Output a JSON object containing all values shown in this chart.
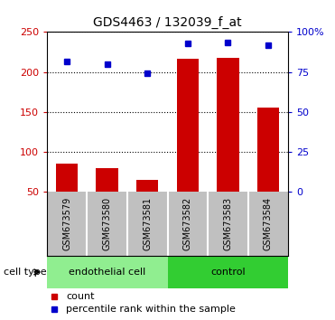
{
  "title": "GDS4463 / 132039_f_at",
  "samples": [
    "GSM673579",
    "GSM673580",
    "GSM673581",
    "GSM673582",
    "GSM673583",
    "GSM673584"
  ],
  "count_values": [
    86,
    80,
    65,
    216,
    218,
    156
  ],
  "percentile_values": [
    213,
    210,
    198,
    236,
    237,
    233
  ],
  "groups": [
    {
      "label": "endothelial cell",
      "indices": [
        0,
        1,
        2
      ],
      "color": "#90EE90"
    },
    {
      "label": "control",
      "indices": [
        3,
        4,
        5
      ],
      "color": "#32CD32"
    }
  ],
  "left_yaxis": {
    "min": 50,
    "max": 250,
    "ticks": [
      50,
      100,
      150,
      200,
      250
    ],
    "color": "#CC0000"
  },
  "right_yaxis": {
    "min": 0,
    "max": 100,
    "ticks": [
      0,
      25,
      50,
      75,
      100
    ],
    "color": "#0000CC"
  },
  "bar_color": "#CC0000",
  "dot_color": "#0000CC",
  "bar_width": 0.55,
  "legend_count_label": "count",
  "legend_percentile_label": "percentile rank within the sample",
  "cell_type_label": "cell type",
  "grid_color": "black",
  "grid_linestyle": ":",
  "sample_bg_color": "#C0C0C0",
  "title_fontsize": 10,
  "tick_fontsize": 8,
  "label_fontsize": 8,
  "sample_fontsize": 7
}
